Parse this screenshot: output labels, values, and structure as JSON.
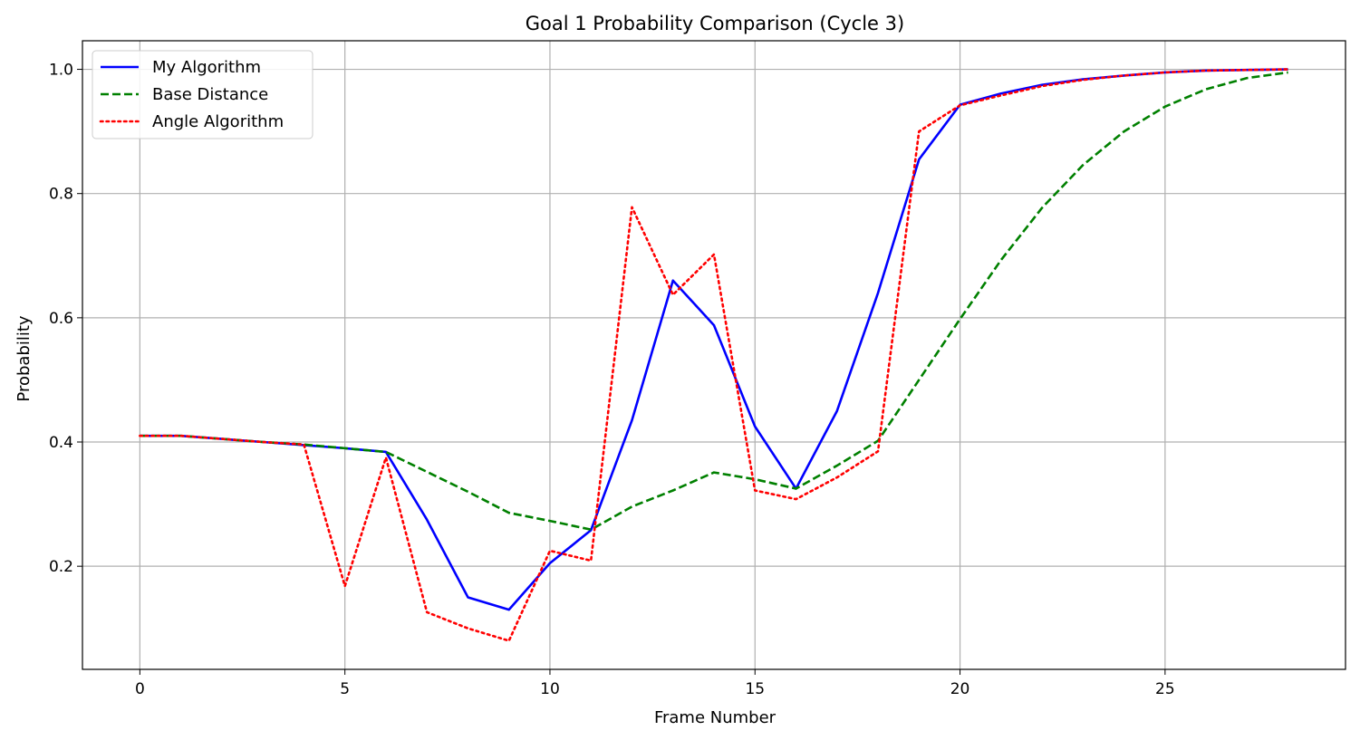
{
  "chart_data": {
    "type": "line",
    "title": "Goal 1 Probability Comparison (Cycle 3)",
    "xlabel": "Frame Number",
    "ylabel": "Probability",
    "xlim": [
      -1.4,
      29.4
    ],
    "ylim": [
      0.034,
      1.046
    ],
    "xticks": [
      0,
      5,
      10,
      15,
      20,
      25
    ],
    "yticks": [
      0.2,
      0.4,
      0.6,
      0.8,
      1.0
    ],
    "xtick_labels": [
      "0",
      "5",
      "10",
      "15",
      "20",
      "25"
    ],
    "ytick_labels": [
      "0.2",
      "0.4",
      "0.6",
      "0.8",
      "1.0"
    ],
    "grid": true,
    "legend_position": "top-left",
    "x": [
      0,
      1,
      2,
      3,
      4,
      5,
      6,
      7,
      8,
      9,
      10,
      11,
      12,
      13,
      14,
      15,
      16,
      17,
      18,
      19,
      20,
      21,
      22,
      23,
      24,
      25,
      26,
      27,
      28
    ],
    "series": [
      {
        "name": "My Algorithm",
        "color": "#0000ff",
        "style": "solid",
        "values": [
          0.41,
          0.41,
          0.405,
          0.4,
          0.395,
          0.39,
          0.384,
          0.275,
          0.15,
          0.13,
          0.205,
          0.258,
          0.435,
          0.66,
          0.588,
          0.425,
          0.325,
          0.45,
          0.64,
          0.855,
          0.943,
          0.961,
          0.975,
          0.984,
          0.99,
          0.995,
          0.998,
          0.999,
          1.0
        ]
      },
      {
        "name": "Base Distance",
        "color": "#008000",
        "style": "dashed",
        "values": [
          0.41,
          0.41,
          0.405,
          0.4,
          0.396,
          0.39,
          0.384,
          0.352,
          0.32,
          0.286,
          0.273,
          0.259,
          0.296,
          0.322,
          0.351,
          0.34,
          0.325,
          0.362,
          0.402,
          0.5,
          0.598,
          0.693,
          0.777,
          0.846,
          0.9,
          0.94,
          0.968,
          0.986,
          0.995
        ]
      },
      {
        "name": "Angle Algorithm",
        "color": "#ff0000",
        "style": "dotted",
        "values": [
          0.41,
          0.41,
          0.405,
          0.4,
          0.396,
          0.168,
          0.375,
          0.126,
          0.1,
          0.08,
          0.225,
          0.209,
          0.778,
          0.637,
          0.702,
          0.322,
          0.308,
          0.343,
          0.385,
          0.9,
          0.942,
          0.958,
          0.973,
          0.983,
          0.99,
          0.995,
          0.998,
          0.999,
          1.0
        ]
      }
    ]
  }
}
